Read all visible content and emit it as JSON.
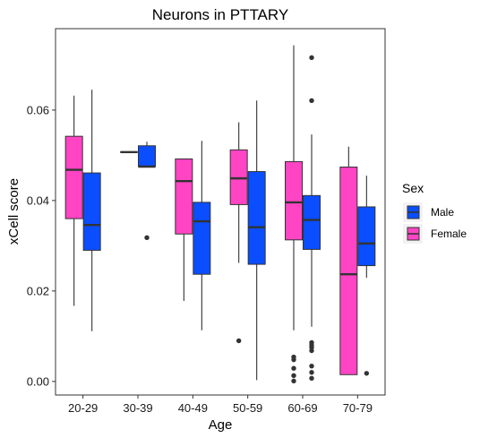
{
  "chart_data": {
    "type": "boxplot",
    "title": "Neurons in PTTARY",
    "xlabel": "Age",
    "ylabel": "xCell score",
    "categories": [
      "20-29",
      "30-39",
      "40-49",
      "50-59",
      "60-69",
      "70-79"
    ],
    "ylim": [
      -0.003,
      0.078
    ],
    "yticks": [
      0.0,
      0.02,
      0.04,
      0.06
    ],
    "ytick_labels": [
      "0.00",
      "0.02",
      "0.04",
      "0.06"
    ],
    "grid": false,
    "legend": {
      "title": "Sex",
      "position": "right",
      "entries": [
        {
          "label": "Male",
          "color": "#0a4eff"
        },
        {
          "label": "Female",
          "color": "#ff44c4"
        }
      ]
    },
    "series": [
      {
        "name": "Female",
        "color": "#ff44c4",
        "boxes": [
          {
            "category": "20-29",
            "whisker_low": 0.0167,
            "q1": 0.036,
            "median": 0.0468,
            "q3": 0.0542,
            "whisker_high": 0.0632,
            "outliers": []
          },
          {
            "category": "30-39",
            "whisker_low": 0.0507,
            "q1": 0.0507,
            "median": 0.0507,
            "q3": 0.0507,
            "whisker_high": 0.0507,
            "outliers": []
          },
          {
            "category": "40-49",
            "whisker_low": 0.0178,
            "q1": 0.0326,
            "median": 0.0443,
            "q3": 0.0492,
            "whisker_high": 0.0492,
            "outliers": []
          },
          {
            "category": "50-59",
            "whisker_low": 0.0262,
            "q1": 0.0391,
            "median": 0.0449,
            "q3": 0.0512,
            "whisker_high": 0.0573,
            "outliers": [
              0.009
            ]
          },
          {
            "category": "60-69",
            "whisker_low": 0.0113,
            "q1": 0.0313,
            "median": 0.0396,
            "q3": 0.0486,
            "whisker_high": 0.0743,
            "outliers": [
              0.0054,
              0.0048,
              0.0029,
              0.0013,
              0.0001
            ]
          },
          {
            "category": "70-79",
            "whisker_low": 0.0015,
            "q1": 0.0015,
            "median": 0.0237,
            "q3": 0.0474,
            "whisker_high": 0.0519,
            "outliers": []
          }
        ]
      },
      {
        "name": "Male",
        "color": "#0a4eff",
        "boxes": [
          {
            "category": "20-29",
            "whisker_low": 0.0111,
            "q1": 0.029,
            "median": 0.0346,
            "q3": 0.0461,
            "whisker_high": 0.0645,
            "outliers": []
          },
          {
            "category": "30-39",
            "whisker_low": 0.0475,
            "q1": 0.0475,
            "median": 0.0475,
            "q3": 0.0521,
            "whisker_high": 0.053,
            "outliers": [
              0.0318
            ]
          },
          {
            "category": "40-49",
            "whisker_low": 0.0113,
            "q1": 0.0237,
            "median": 0.0354,
            "q3": 0.0396,
            "whisker_high": 0.0532,
            "outliers": []
          },
          {
            "category": "50-59",
            "whisker_low": 0.0003,
            "q1": 0.0259,
            "median": 0.0341,
            "q3": 0.0464,
            "whisker_high": 0.0621,
            "outliers": []
          },
          {
            "category": "60-69",
            "whisker_low": 0.0121,
            "q1": 0.0292,
            "median": 0.0357,
            "q3": 0.0411,
            "whisker_high": 0.0546,
            "outliers": [
              0.0716,
              0.0621,
              0.0086,
              0.008,
              0.0075,
              0.0068,
              0.0034,
              0.002,
              0.0007
            ]
          },
          {
            "category": "70-79",
            "whisker_low": 0.0229,
            "q1": 0.0256,
            "median": 0.0305,
            "q3": 0.0386,
            "whisker_high": 0.0455,
            "outliers": [
              0.0018
            ]
          }
        ]
      }
    ]
  }
}
